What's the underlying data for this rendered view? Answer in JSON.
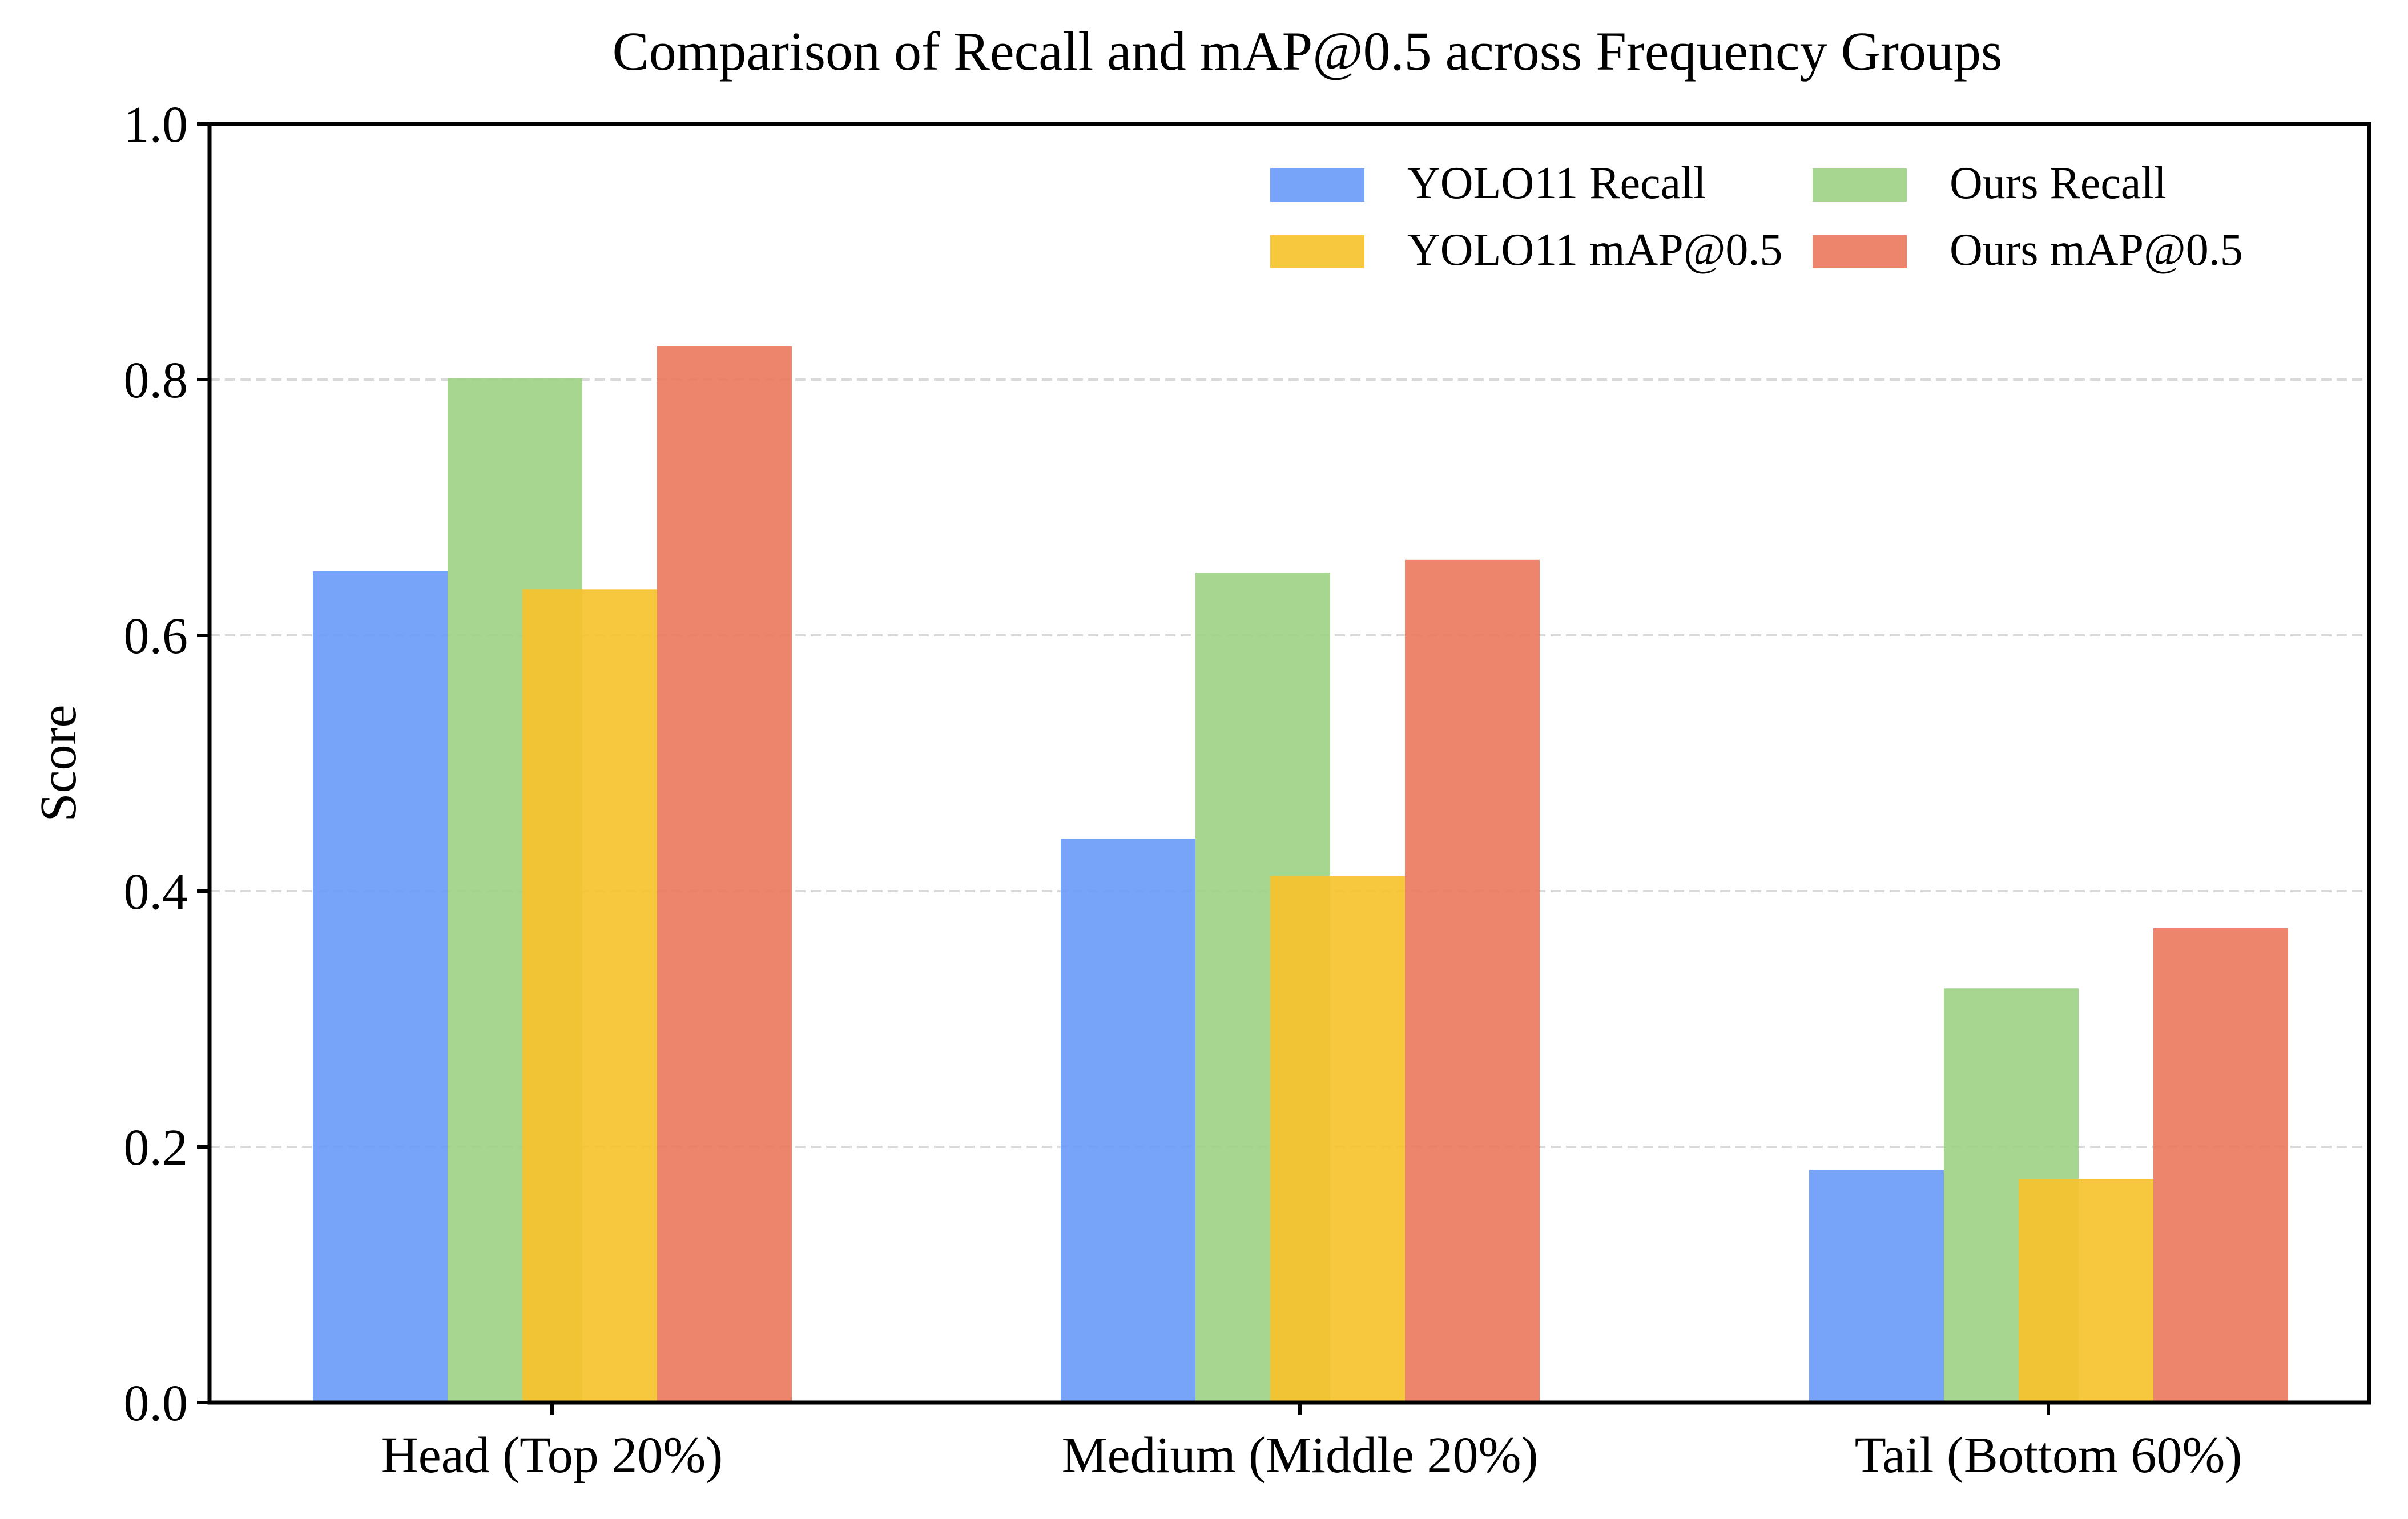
{
  "chart_data": {
    "type": "bar",
    "title": "Comparison of Recall and mAP@0.5 across Frequency Groups",
    "xlabel": "",
    "ylabel": "Score",
    "ylim": [
      0,
      1.0
    ],
    "yticks": [
      0.0,
      0.2,
      0.4,
      0.6,
      0.8,
      1.0
    ],
    "ytick_labels": [
      "0.0",
      "0.2",
      "0.4",
      "0.6",
      "0.8",
      "1.0"
    ],
    "grid": "horizontal dashed",
    "legend_position": "top-right",
    "categories": [
      "Head (Top 20%)",
      "Medium (Middle 20%)",
      "Tail (Bottom 60%)"
    ],
    "series": [
      {
        "name": "YOLO11 Recall",
        "color": "#6b9cf8",
        "values": [
          0.65,
          0.441,
          0.182
        ]
      },
      {
        "name": "Ours Recall",
        "color": "#9ed285",
        "values": [
          0.801,
          0.649,
          0.324
        ]
      },
      {
        "name": "YOLO11 mAP@0.5",
        "color": "#f6c22e",
        "values": [
          0.636,
          0.412,
          0.175
        ]
      },
      {
        "name": "Ours mAP@0.5",
        "color": "#eb7b60",
        "values": [
          0.826,
          0.659,
          0.371
        ]
      }
    ]
  }
}
